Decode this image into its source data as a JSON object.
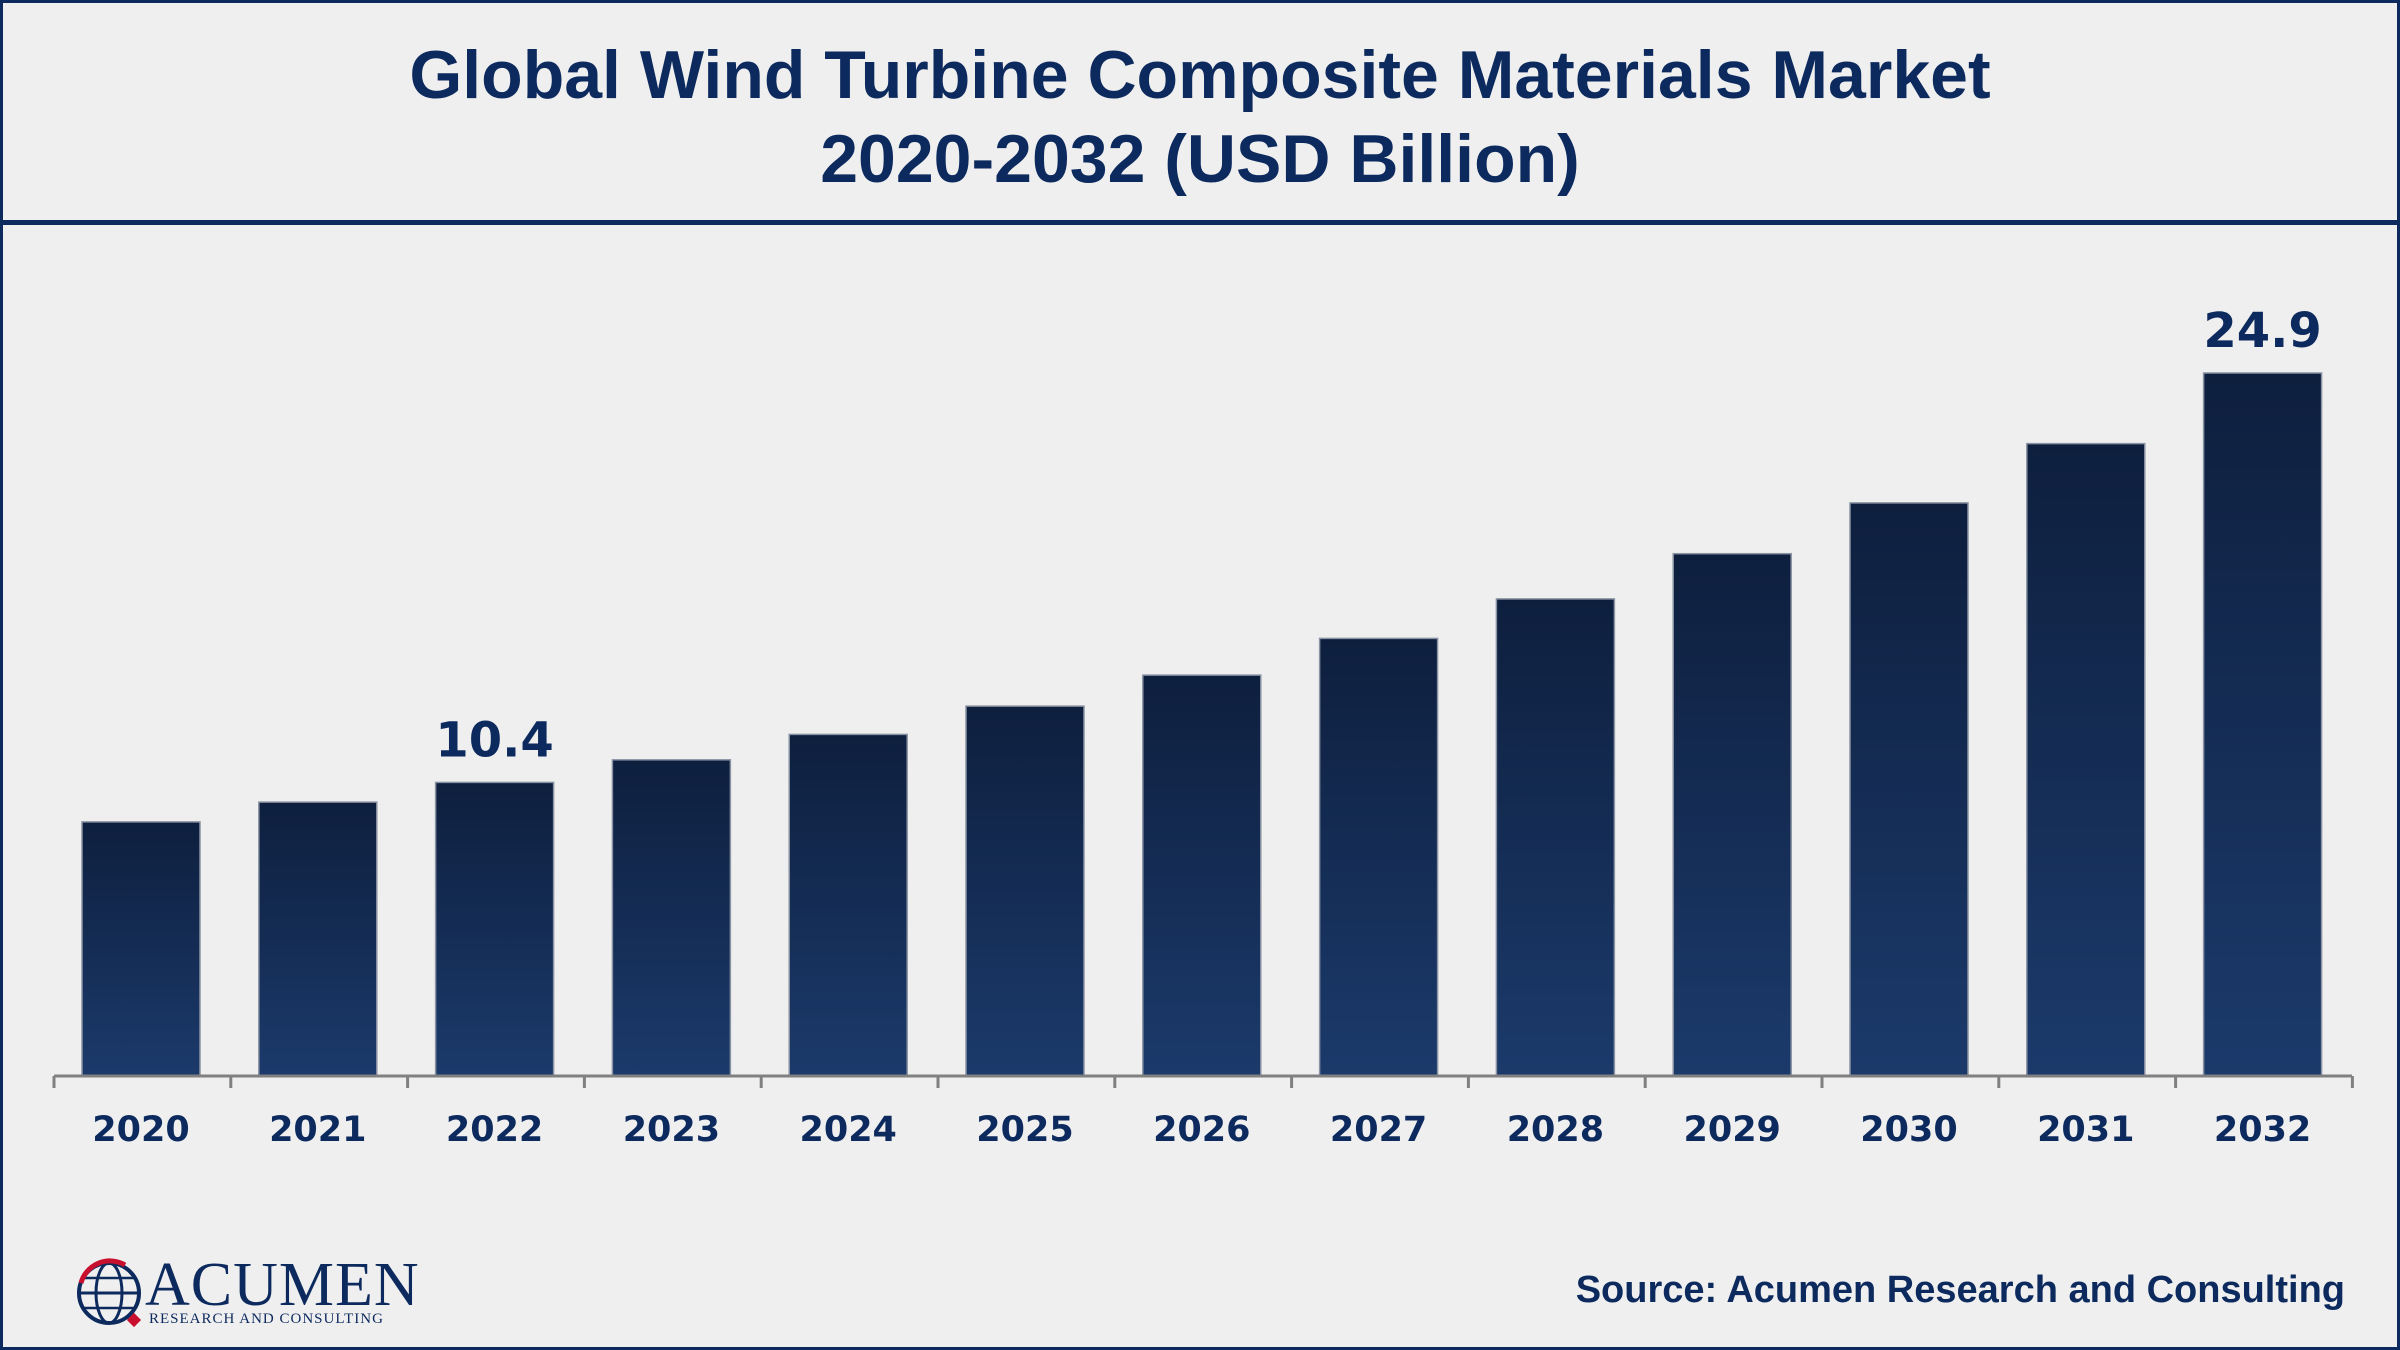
{
  "header": {
    "title_line_1": "Global Wind Turbine Composite Materials Market",
    "title_line_2": "2020-2032 (USD Billion)"
  },
  "chart_data": {
    "type": "bar",
    "title": "Global Wind Turbine Composite Materials Market 2020-2032 (USD Billion)",
    "categories": [
      "2020",
      "2021",
      "2022",
      "2023",
      "2024",
      "2025",
      "2026",
      "2027",
      "2028",
      "2029",
      "2030",
      "2031",
      "2032"
    ],
    "values": [
      9.0,
      9.7,
      10.4,
      11.2,
      12.1,
      13.1,
      14.2,
      15.5,
      16.9,
      18.5,
      20.3,
      22.4,
      24.9
    ],
    "data_labels": [
      {
        "index": 2,
        "text": "10.4"
      },
      {
        "index": 12,
        "text": "24.9"
      }
    ],
    "xlabel": "",
    "ylabel": "",
    "ylim": [
      0,
      30
    ],
    "grid": false,
    "legend": "none",
    "bar_color_top": "#0e1f3e",
    "bar_color_bottom": "#1b3a6b",
    "axis_color": "#808080"
  },
  "footer": {
    "logo_word": "Acumen",
    "logo_subtext": "RESEARCH AND CONSULTING",
    "source": "Source: Acumen Research and Consulting"
  },
  "colors": {
    "brand_navy": "#0d2a5e",
    "background": "#efefef",
    "logo_red": "#c8102e"
  }
}
